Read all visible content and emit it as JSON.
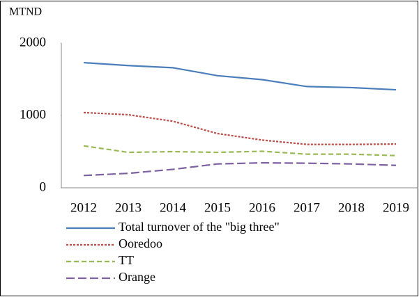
{
  "chart_data": {
    "type": "line",
    "y_label": "MTND",
    "categories": [
      "2012",
      "2013",
      "2014",
      "2015",
      "2016",
      "2017",
      "2018",
      "2019"
    ],
    "series": [
      {
        "name": "Total turnover of the \"big three\"",
        "color": "#4a7ebb",
        "dash": "solid",
        "values": [
          1730,
          1690,
          1660,
          1550,
          1495,
          1400,
          1385,
          1355
        ]
      },
      {
        "name": "Ooredoo",
        "color": "#be4b48",
        "dash": "dotted",
        "values": [
          1040,
          1010,
          920,
          750,
          660,
          600,
          600,
          605
        ]
      },
      {
        "name": "TT",
        "color": "#98b954",
        "dash": "dashed",
        "values": [
          580,
          490,
          500,
          490,
          505,
          465,
          465,
          445
        ]
      },
      {
        "name": "Orange",
        "color": "#7d60a0",
        "dash": "longdash",
        "values": [
          170,
          200,
          255,
          330,
          345,
          340,
          330,
          310
        ]
      }
    ],
    "ylim": [
      0,
      2000
    ],
    "yticks": [
      0,
      1000,
      2000
    ],
    "grid": false,
    "legend": "bottom"
  }
}
